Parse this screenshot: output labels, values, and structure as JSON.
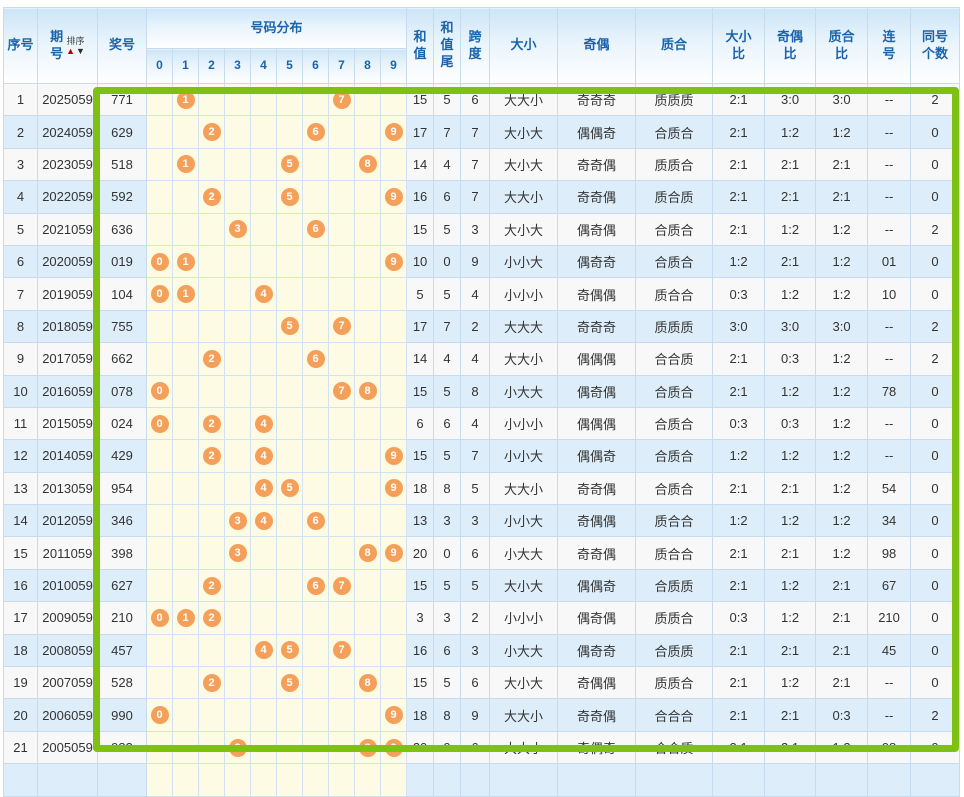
{
  "header": {
    "seq": "序号",
    "period": "期\n号",
    "sort_label": "排序",
    "sort_up_icon": "▲",
    "sort_down_icon": "▼",
    "prize": "奖号",
    "distribution": "号码分布",
    "digits": [
      "0",
      "1",
      "2",
      "3",
      "4",
      "5",
      "6",
      "7",
      "8",
      "9"
    ],
    "sum": "和\n值",
    "sum_tail": "和\n值\n尾",
    "span": "跨\n度",
    "big_small": "大小",
    "odd_even": "奇偶",
    "prime_composite": "质合",
    "big_small_ratio": "大小\n比",
    "odd_even_ratio": "奇偶\n比",
    "prime_composite_ratio": "质合\n比",
    "consecutive": "连\n号",
    "same_count": "同号\n个数"
  },
  "colors": {
    "ball": "#f5a05a",
    "highlight_border": "#7ec113",
    "header_text": "#1b64ad",
    "even_row": "#ddeefa",
    "odd_row": "#f8f8f8",
    "distribution_cell": "#fdfbe3"
  },
  "rows": [
    {
      "no": "1",
      "period": "2025059",
      "prize": "771",
      "balls": [
        1,
        7
      ],
      "sum": "15",
      "tail": "5",
      "span": "6",
      "big_small": "大大小",
      "odd_even": "奇奇奇",
      "prime_composite": "质质质",
      "bs_ratio": "2:1",
      "oe_ratio": "3:0",
      "pc_ratio": "3:0",
      "consecutive": "--",
      "same_count": "2"
    },
    {
      "no": "2",
      "period": "2024059",
      "prize": "629",
      "balls": [
        2,
        6,
        9
      ],
      "sum": "17",
      "tail": "7",
      "span": "7",
      "big_small": "大小大",
      "odd_even": "偶偶奇",
      "prime_composite": "合质合",
      "bs_ratio": "2:1",
      "oe_ratio": "1:2",
      "pc_ratio": "1:2",
      "consecutive": "--",
      "same_count": "0"
    },
    {
      "no": "3",
      "period": "2023059",
      "prize": "518",
      "balls": [
        1,
        5,
        8
      ],
      "sum": "14",
      "tail": "4",
      "span": "7",
      "big_small": "大小大",
      "odd_even": "奇奇偶",
      "prime_composite": "质质合",
      "bs_ratio": "2:1",
      "oe_ratio": "2:1",
      "pc_ratio": "2:1",
      "consecutive": "--",
      "same_count": "0"
    },
    {
      "no": "4",
      "period": "2022059",
      "prize": "592",
      "balls": [
        2,
        5,
        9
      ],
      "sum": "16",
      "tail": "6",
      "span": "7",
      "big_small": "大大小",
      "odd_even": "奇奇偶",
      "prime_composite": "质合质",
      "bs_ratio": "2:1",
      "oe_ratio": "2:1",
      "pc_ratio": "2:1",
      "consecutive": "--",
      "same_count": "0"
    },
    {
      "no": "5",
      "period": "2021059",
      "prize": "636",
      "balls": [
        3,
        6
      ],
      "sum": "15",
      "tail": "5",
      "span": "3",
      "big_small": "大小大",
      "odd_even": "偶奇偶",
      "prime_composite": "合质合",
      "bs_ratio": "2:1",
      "oe_ratio": "1:2",
      "pc_ratio": "1:2",
      "consecutive": "--",
      "same_count": "2"
    },
    {
      "no": "6",
      "period": "2020059",
      "prize": "019",
      "balls": [
        0,
        1,
        9
      ],
      "sum": "10",
      "tail": "0",
      "span": "9",
      "big_small": "小小大",
      "odd_even": "偶奇奇",
      "prime_composite": "合质合",
      "bs_ratio": "1:2",
      "oe_ratio": "2:1",
      "pc_ratio": "1:2",
      "consecutive": "01",
      "same_count": "0"
    },
    {
      "no": "7",
      "period": "2019059",
      "prize": "104",
      "balls": [
        0,
        1,
        4
      ],
      "sum": "5",
      "tail": "5",
      "span": "4",
      "big_small": "小小小",
      "odd_even": "奇偶偶",
      "prime_composite": "质合合",
      "bs_ratio": "0:3",
      "oe_ratio": "1:2",
      "pc_ratio": "1:2",
      "consecutive": "10",
      "same_count": "0"
    },
    {
      "no": "8",
      "period": "2018059",
      "prize": "755",
      "balls": [
        5,
        7
      ],
      "sum": "17",
      "tail": "7",
      "span": "2",
      "big_small": "大大大",
      "odd_even": "奇奇奇",
      "prime_composite": "质质质",
      "bs_ratio": "3:0",
      "oe_ratio": "3:0",
      "pc_ratio": "3:0",
      "consecutive": "--",
      "same_count": "2"
    },
    {
      "no": "9",
      "period": "2017059",
      "prize": "662",
      "balls": [
        2,
        6
      ],
      "sum": "14",
      "tail": "4",
      "span": "4",
      "big_small": "大大小",
      "odd_even": "偶偶偶",
      "prime_composite": "合合质",
      "bs_ratio": "2:1",
      "oe_ratio": "0:3",
      "pc_ratio": "1:2",
      "consecutive": "--",
      "same_count": "2"
    },
    {
      "no": "10",
      "period": "2016059",
      "prize": "078",
      "balls": [
        0,
        7,
        8
      ],
      "sum": "15",
      "tail": "5",
      "span": "8",
      "big_small": "小大大",
      "odd_even": "偶奇偶",
      "prime_composite": "合质合",
      "bs_ratio": "2:1",
      "oe_ratio": "1:2",
      "pc_ratio": "1:2",
      "consecutive": "78",
      "same_count": "0"
    },
    {
      "no": "11",
      "period": "2015059",
      "prize": "024",
      "balls": [
        0,
        2,
        4
      ],
      "sum": "6",
      "tail": "6",
      "span": "4",
      "big_small": "小小小",
      "odd_even": "偶偶偶",
      "prime_composite": "合质合",
      "bs_ratio": "0:3",
      "oe_ratio": "0:3",
      "pc_ratio": "1:2",
      "consecutive": "--",
      "same_count": "0"
    },
    {
      "no": "12",
      "period": "2014059",
      "prize": "429",
      "balls": [
        2,
        4,
        9
      ],
      "sum": "15",
      "tail": "5",
      "span": "7",
      "big_small": "小小大",
      "odd_even": "偶偶奇",
      "prime_composite": "合质合",
      "bs_ratio": "1:2",
      "oe_ratio": "1:2",
      "pc_ratio": "1:2",
      "consecutive": "--",
      "same_count": "0"
    },
    {
      "no": "13",
      "period": "2013059",
      "prize": "954",
      "balls": [
        4,
        5,
        9
      ],
      "sum": "18",
      "tail": "8",
      "span": "5",
      "big_small": "大大小",
      "odd_even": "奇奇偶",
      "prime_composite": "合质合",
      "bs_ratio": "2:1",
      "oe_ratio": "2:1",
      "pc_ratio": "1:2",
      "consecutive": "54",
      "same_count": "0"
    },
    {
      "no": "14",
      "period": "2012059",
      "prize": "346",
      "balls": [
        3,
        4,
        6
      ],
      "sum": "13",
      "tail": "3",
      "span": "3",
      "big_small": "小小大",
      "odd_even": "奇偶偶",
      "prime_composite": "质合合",
      "bs_ratio": "1:2",
      "oe_ratio": "1:2",
      "pc_ratio": "1:2",
      "consecutive": "34",
      "same_count": "0"
    },
    {
      "no": "15",
      "period": "2011059",
      "prize": "398",
      "balls": [
        3,
        8,
        9
      ],
      "sum": "20",
      "tail": "0",
      "span": "6",
      "big_small": "小大大",
      "odd_even": "奇奇偶",
      "prime_composite": "质合合",
      "bs_ratio": "2:1",
      "oe_ratio": "2:1",
      "pc_ratio": "1:2",
      "consecutive": "98",
      "same_count": "0"
    },
    {
      "no": "16",
      "period": "2010059",
      "prize": "627",
      "balls": [
        2,
        6,
        7
      ],
      "sum": "15",
      "tail": "5",
      "span": "5",
      "big_small": "大小大",
      "odd_even": "偶偶奇",
      "prime_composite": "合质质",
      "bs_ratio": "2:1",
      "oe_ratio": "1:2",
      "pc_ratio": "2:1",
      "consecutive": "67",
      "same_count": "0"
    },
    {
      "no": "17",
      "period": "2009059",
      "prize": "210",
      "balls": [
        0,
        1,
        2
      ],
      "sum": "3",
      "tail": "3",
      "span": "2",
      "big_small": "小小小",
      "odd_even": "偶奇偶",
      "prime_composite": "质质合",
      "bs_ratio": "0:3",
      "oe_ratio": "1:2",
      "pc_ratio": "2:1",
      "consecutive": "210",
      "same_count": "0"
    },
    {
      "no": "18",
      "period": "2008059",
      "prize": "457",
      "balls": [
        4,
        5,
        7
      ],
      "sum": "16",
      "tail": "6",
      "span": "3",
      "big_small": "小大大",
      "odd_even": "偶奇奇",
      "prime_composite": "合质质",
      "bs_ratio": "2:1",
      "oe_ratio": "2:1",
      "pc_ratio": "2:1",
      "consecutive": "45",
      "same_count": "0"
    },
    {
      "no": "19",
      "period": "2007059",
      "prize": "528",
      "balls": [
        2,
        5,
        8
      ],
      "sum": "15",
      "tail": "5",
      "span": "6",
      "big_small": "大小大",
      "odd_even": "奇偶偶",
      "prime_composite": "质质合",
      "bs_ratio": "2:1",
      "oe_ratio": "1:2",
      "pc_ratio": "2:1",
      "consecutive": "--",
      "same_count": "0"
    },
    {
      "no": "20",
      "period": "2006059",
      "prize": "990",
      "balls": [
        0,
        9
      ],
      "sum": "18",
      "tail": "8",
      "span": "9",
      "big_small": "大大小",
      "odd_even": "奇奇偶",
      "prime_composite": "合合合",
      "bs_ratio": "2:1",
      "oe_ratio": "2:1",
      "pc_ratio": "0:3",
      "consecutive": "--",
      "same_count": "2"
    },
    {
      "no": "21",
      "period": "2005059",
      "prize": "983",
      "balls": [
        3,
        8,
        9
      ],
      "sum": "20",
      "tail": "0",
      "span": "6",
      "big_small": "大大小",
      "odd_even": "奇偶奇",
      "prime_composite": "合合质",
      "bs_ratio": "2:1",
      "oe_ratio": "2:1",
      "pc_ratio": "1:2",
      "consecutive": "98",
      "same_count": "0"
    }
  ]
}
